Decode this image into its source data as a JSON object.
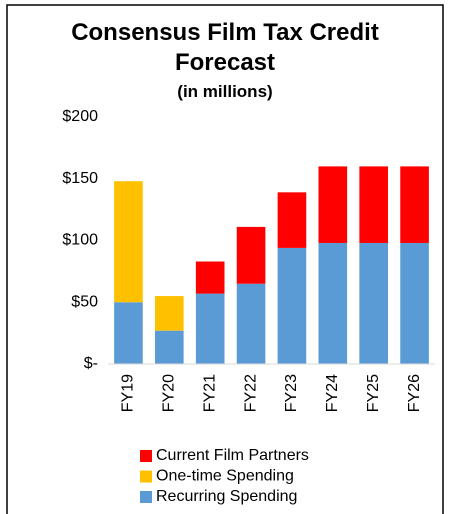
{
  "chart_data": {
    "type": "stacked_bar",
    "title": "Consensus Film Tax Credit Forecast",
    "subtitle": "(in millions)",
    "categories": [
      "FY19",
      "FY20",
      "FY21",
      "FY22",
      "FY23",
      "FY24",
      "FY25",
      "FY26"
    ],
    "series": [
      {
        "name": "Recurring Spending",
        "color": "#5b9bd5",
        "values": [
          50,
          27,
          57,
          65,
          94,
          98,
          98,
          98
        ]
      },
      {
        "name": "One-time Spending",
        "color": "#ffc000",
        "values": [
          98,
          28,
          null,
          null,
          null,
          null,
          null,
          null
        ]
      },
      {
        "name": "Current Film Partners",
        "color": "#ff0000",
        "values": [
          null,
          null,
          26,
          46,
          45,
          62,
          62,
          62
        ]
      }
    ],
    "ylim": [
      0,
      200
    ],
    "yticks": [
      {
        "value": 0,
        "label": "$-"
      },
      {
        "value": 50,
        "label": "$50"
      },
      {
        "value": 100,
        "label": "$100"
      },
      {
        "value": 150,
        "label": "$150"
      },
      {
        "value": 200,
        "label": "$200"
      }
    ],
    "grid": false,
    "legend": "bottom"
  }
}
